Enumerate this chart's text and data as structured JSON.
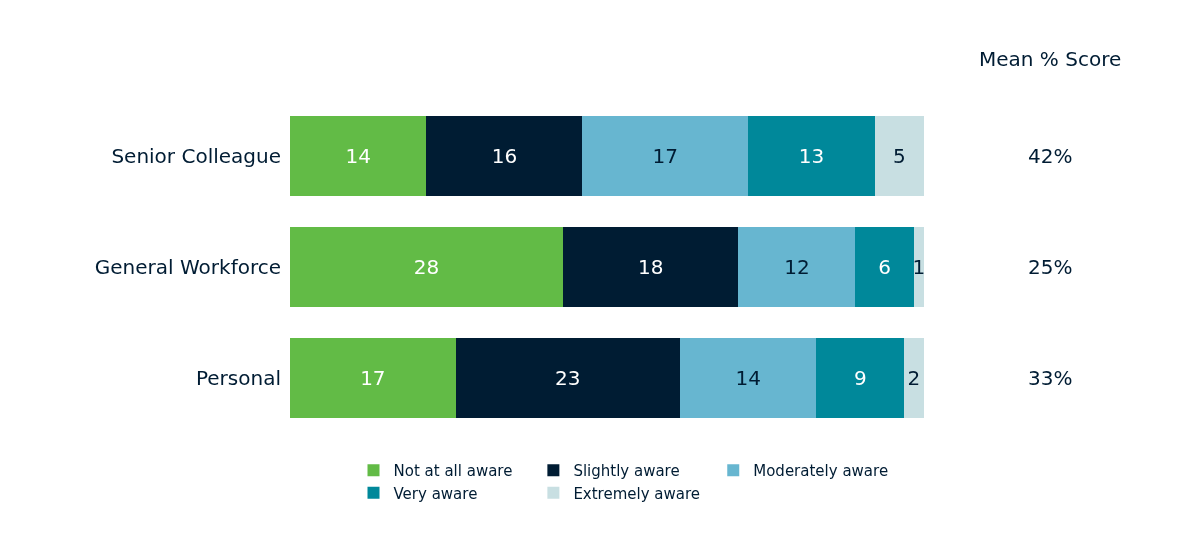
{
  "chart_data": {
    "type": "bar",
    "orientation": "horizontal",
    "stacked": true,
    "data_labels": true,
    "legend": "bottom",
    "categories": [
      "Senior Colleague",
      "General Workforce",
      "Personal"
    ],
    "series": [
      {
        "name": "Not at all aware",
        "color": "#62bb46",
        "values": [
          14,
          28,
          17
        ]
      },
      {
        "name": "Slightly aware",
        "color": "#001c33",
        "values": [
          16,
          18,
          23
        ]
      },
      {
        "name": "Moderately aware",
        "color": "#67b6d0",
        "values": [
          17,
          12,
          14
        ]
      },
      {
        "name": "Very aware",
        "color": "#00889a",
        "values": [
          13,
          6,
          9
        ]
      },
      {
        "name": "Extremely aware",
        "color": "#c8dfe2",
        "values": [
          5,
          1,
          2
        ]
      }
    ],
    "annotations": [
      "Mean % Score",
      "42%",
      "25%",
      "33%"
    ]
  }
}
